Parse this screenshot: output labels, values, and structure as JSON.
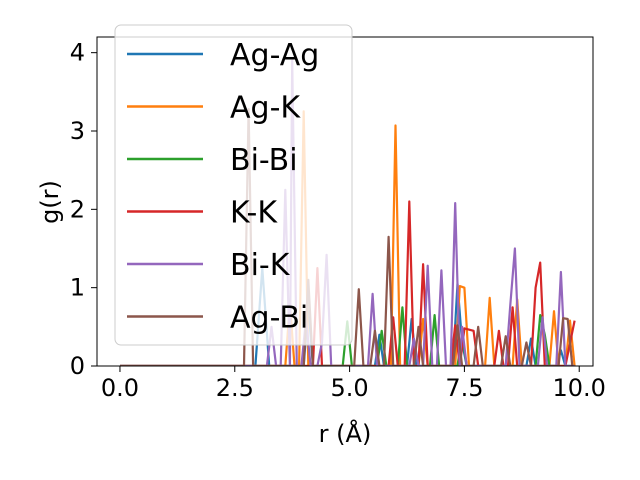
{
  "chart_data": {
    "type": "line",
    "title": "",
    "xlabel": "r (Å)",
    "ylabel": "g(r)",
    "xlim": [
      -0.5,
      10.3
    ],
    "ylim": [
      0,
      4.2
    ],
    "xticks": [
      0.0,
      2.5,
      5.0,
      7.5,
      10.0
    ],
    "xtick_labels": [
      "0.0",
      "2.5",
      "5.0",
      "7.5",
      "10.0"
    ],
    "yticks": [
      0,
      1,
      2,
      3,
      4
    ],
    "ytick_labels": [
      "0",
      "1",
      "2",
      "3",
      "4"
    ],
    "grid": false,
    "legend_position": "upper-left",
    "series": [
      {
        "name": "Ag-Ag",
        "color": "#1f77b4",
        "points": [
          [
            0,
            0
          ],
          [
            2.95,
            0
          ],
          [
            3.1,
            1.25
          ],
          [
            3.25,
            0
          ],
          [
            4.0,
            0
          ],
          [
            4.1,
            0.8
          ],
          [
            4.2,
            0
          ],
          [
            5.55,
            0
          ],
          [
            5.65,
            0.4
          ],
          [
            5.75,
            0
          ],
          [
            6.25,
            0
          ],
          [
            6.35,
            0.6
          ],
          [
            6.45,
            0
          ],
          [
            7.25,
            0
          ],
          [
            7.35,
            1.05
          ],
          [
            7.45,
            0.3
          ],
          [
            7.55,
            0
          ],
          [
            8.85,
            0
          ],
          [
            8.95,
            0.35
          ],
          [
            9.05,
            0
          ],
          [
            9.5,
            0
          ],
          [
            9.6,
            0.2
          ],
          [
            9.7,
            0
          ],
          [
            9.9,
            0
          ]
        ]
      },
      {
        "name": "Ag-K",
        "color": "#ff7f0e",
        "points": [
          [
            0,
            0
          ],
          [
            3.6,
            0
          ],
          [
            3.7,
            0.8
          ],
          [
            3.8,
            0
          ],
          [
            3.9,
            0
          ],
          [
            4.0,
            3.25
          ],
          [
            4.1,
            0
          ],
          [
            5.9,
            0
          ],
          [
            6.0,
            3.07
          ],
          [
            6.1,
            0
          ],
          [
            6.5,
            0
          ],
          [
            6.6,
            0.6
          ],
          [
            6.7,
            0
          ],
          [
            7.3,
            0
          ],
          [
            7.4,
            1.02
          ],
          [
            7.5,
            1.0
          ],
          [
            7.6,
            0
          ],
          [
            7.95,
            0
          ],
          [
            8.05,
            0.87
          ],
          [
            8.15,
            0
          ],
          [
            8.55,
            0
          ],
          [
            8.65,
            0.85
          ],
          [
            8.75,
            0
          ],
          [
            9.35,
            0
          ],
          [
            9.45,
            0.7
          ],
          [
            9.55,
            0
          ],
          [
            9.7,
            0
          ],
          [
            9.8,
            0.58
          ],
          [
            9.9,
            0
          ]
        ]
      },
      {
        "name": "Bi-Bi",
        "color": "#2ca02c",
        "points": [
          [
            0,
            0
          ],
          [
            4.85,
            0
          ],
          [
            4.95,
            0.57
          ],
          [
            5.05,
            0
          ],
          [
            5.6,
            0
          ],
          [
            5.7,
            0.45
          ],
          [
            5.8,
            0
          ],
          [
            6.05,
            0
          ],
          [
            6.15,
            0.75
          ],
          [
            6.25,
            0
          ],
          [
            6.75,
            0
          ],
          [
            6.85,
            0.65
          ],
          [
            6.95,
            0
          ],
          [
            7.35,
            0
          ],
          [
            7.45,
            0.4
          ],
          [
            7.55,
            0
          ],
          [
            9.05,
            0
          ],
          [
            9.15,
            0.65
          ],
          [
            9.25,
            0.4
          ],
          [
            9.35,
            0
          ],
          [
            9.9,
            0
          ]
        ]
      },
      {
        "name": "K-K",
        "color": "#d62728",
        "points": [
          [
            0,
            0
          ],
          [
            4.2,
            0
          ],
          [
            4.3,
            1.25
          ],
          [
            4.4,
            0
          ],
          [
            5.85,
            0
          ],
          [
            5.95,
            0.62
          ],
          [
            6.05,
            0
          ],
          [
            6.2,
            0
          ],
          [
            6.3,
            2.1
          ],
          [
            6.4,
            0
          ],
          [
            6.5,
            0
          ],
          [
            6.6,
            1.3
          ],
          [
            6.7,
            0
          ],
          [
            7.2,
            0
          ],
          [
            7.3,
            0.52
          ],
          [
            7.4,
            0
          ],
          [
            7.5,
            0.48
          ],
          [
            7.7,
            0.45
          ],
          [
            7.8,
            0
          ],
          [
            8.15,
            0
          ],
          [
            8.25,
            0.45
          ],
          [
            8.35,
            0
          ],
          [
            8.45,
            0
          ],
          [
            8.55,
            0.75
          ],
          [
            8.65,
            0
          ],
          [
            8.95,
            0
          ],
          [
            9.05,
            1.0
          ],
          [
            9.15,
            1.32
          ],
          [
            9.25,
            0
          ],
          [
            9.7,
            0
          ],
          [
            9.9,
            0.58
          ]
        ]
      },
      {
        "name": "Bi-K",
        "color": "#9467bd",
        "points": [
          [
            0,
            0
          ],
          [
            3.2,
            0
          ],
          [
            3.3,
            0.5
          ],
          [
            3.4,
            0
          ],
          [
            3.5,
            0
          ],
          [
            3.6,
            2.25
          ],
          [
            3.7,
            0
          ],
          [
            3.75,
            3.9
          ],
          [
            3.85,
            0
          ],
          [
            3.95,
            0
          ],
          [
            4.05,
            0.6
          ],
          [
            4.15,
            0
          ],
          [
            4.3,
            0
          ],
          [
            4.4,
            0.3
          ],
          [
            4.5,
            1.42
          ],
          [
            4.6,
            0
          ],
          [
            5.4,
            0
          ],
          [
            5.5,
            0.92
          ],
          [
            5.6,
            0
          ],
          [
            6.3,
            0
          ],
          [
            6.4,
            0.35
          ],
          [
            6.5,
            0
          ],
          [
            6.6,
            0
          ],
          [
            6.7,
            1.28
          ],
          [
            6.8,
            0
          ],
          [
            6.9,
            0
          ],
          [
            7.0,
            1.22
          ],
          [
            7.1,
            0
          ],
          [
            7.2,
            0
          ],
          [
            7.3,
            2.08
          ],
          [
            7.4,
            0
          ],
          [
            7.45,
            0.5
          ],
          [
            7.55,
            0
          ],
          [
            8.4,
            0
          ],
          [
            8.5,
            0.78
          ],
          [
            8.6,
            1.5
          ],
          [
            8.7,
            0
          ],
          [
            9.1,
            0
          ],
          [
            9.2,
            0.62
          ],
          [
            9.3,
            0
          ],
          [
            9.5,
            0
          ],
          [
            9.6,
            1.2
          ],
          [
            9.7,
            0
          ],
          [
            9.9,
            0
          ]
        ]
      },
      {
        "name": "Ag-Bi",
        "color": "#8c564b",
        "points": [
          [
            0,
            0
          ],
          [
            2.7,
            0
          ],
          [
            2.8,
            3.28
          ],
          [
            2.9,
            0
          ],
          [
            4.0,
            0
          ],
          [
            4.1,
            1.1
          ],
          [
            4.2,
            0
          ],
          [
            5.1,
            0
          ],
          [
            5.2,
            0.98
          ],
          [
            5.3,
            0
          ],
          [
            5.45,
            0
          ],
          [
            5.55,
            0.45
          ],
          [
            5.65,
            0
          ],
          [
            5.75,
            0
          ],
          [
            5.85,
            1.65
          ],
          [
            5.95,
            0
          ],
          [
            6.4,
            0
          ],
          [
            6.5,
            0.5
          ],
          [
            6.6,
            0
          ],
          [
            7.25,
            0
          ],
          [
            7.35,
            0.52
          ],
          [
            7.45,
            0
          ],
          [
            7.7,
            0
          ],
          [
            7.8,
            0.5
          ],
          [
            7.9,
            0
          ],
          [
            8.3,
            0
          ],
          [
            8.4,
            0.38
          ],
          [
            8.5,
            0
          ],
          [
            8.75,
            0
          ],
          [
            8.85,
            0.3
          ],
          [
            8.95,
            0
          ],
          [
            9.55,
            0
          ],
          [
            9.65,
            0.61
          ],
          [
            9.75,
            0.6
          ],
          [
            9.85,
            0
          ]
        ]
      }
    ]
  }
}
